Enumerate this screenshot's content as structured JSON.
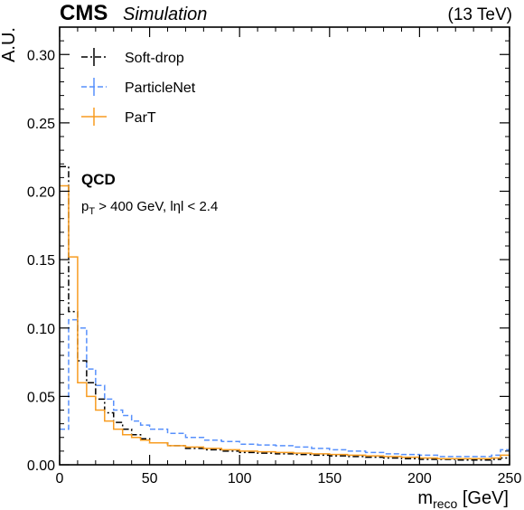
{
  "header": {
    "experiment": "CMS",
    "tag": "Simulation",
    "energy": "(13 TeV)"
  },
  "annotation": {
    "process": "QCD",
    "cuts": "p_T > 400 GeV,  |η| < 2.4",
    "pt_p": "p",
    "pt_sub": "T",
    "pt_rest": " > 400 GeV,  lηl < 2.4"
  },
  "chart_data": {
    "type": "line",
    "title": "",
    "xlabel": "m_reco [GeV]",
    "xlabel_main": "m",
    "xlabel_sub": "reco",
    "xlabel_unit": " [GeV]",
    "ylabel": "A.U.",
    "xlim": [
      0,
      250
    ],
    "ylim": [
      0,
      0.32
    ],
    "x_ticks": [
      "0",
      "50",
      "100",
      "150",
      "200",
      "250"
    ],
    "y_ticks": [
      "0.00",
      "0.05",
      "0.10",
      "0.15",
      "0.20",
      "0.25",
      "0.30"
    ],
    "bin_edges": [
      0,
      5,
      10,
      15,
      20,
      25,
      30,
      35,
      40,
      45,
      50,
      60,
      70,
      80,
      90,
      100,
      110,
      120,
      130,
      140,
      150,
      160,
      170,
      180,
      190,
      200,
      210,
      220,
      230,
      240,
      245,
      250
    ],
    "legend_position": "top-left",
    "series": [
      {
        "name": "Soft-drop",
        "color": "#000000",
        "dash": "dashdot",
        "values": [
          0.218,
          0.112,
          0.076,
          0.06,
          0.048,
          0.038,
          0.031,
          0.026,
          0.022,
          0.019,
          0.016,
          0.014,
          0.012,
          0.011,
          0.01,
          0.009,
          0.0085,
          0.008,
          0.0075,
          0.007,
          0.0065,
          0.006,
          0.0055,
          0.005,
          0.0045,
          0.004,
          0.004,
          0.0035,
          0.0035,
          0.004,
          0.005
        ]
      },
      {
        "name": "ParticleNet",
        "color": "#5790fc",
        "dash": "dashed",
        "values": [
          0.026,
          0.106,
          0.1,
          0.07,
          0.058,
          0.048,
          0.04,
          0.036,
          0.032,
          0.029,
          0.026,
          0.023,
          0.02,
          0.018,
          0.017,
          0.015,
          0.0145,
          0.014,
          0.013,
          0.012,
          0.011,
          0.01,
          0.009,
          0.008,
          0.0075,
          0.007,
          0.006,
          0.006,
          0.006,
          0.007,
          0.011
        ]
      },
      {
        "name": "ParT",
        "color": "#f89c20",
        "dash": "solid",
        "values": [
          0.204,
          0.152,
          0.06,
          0.05,
          0.04,
          0.032,
          0.026,
          0.022,
          0.02,
          0.018,
          0.016,
          0.014,
          0.013,
          0.012,
          0.011,
          0.01,
          0.0095,
          0.009,
          0.0085,
          0.008,
          0.0075,
          0.007,
          0.0065,
          0.006,
          0.0055,
          0.005,
          0.0045,
          0.0045,
          0.0045,
          0.005,
          0.007
        ]
      }
    ]
  }
}
